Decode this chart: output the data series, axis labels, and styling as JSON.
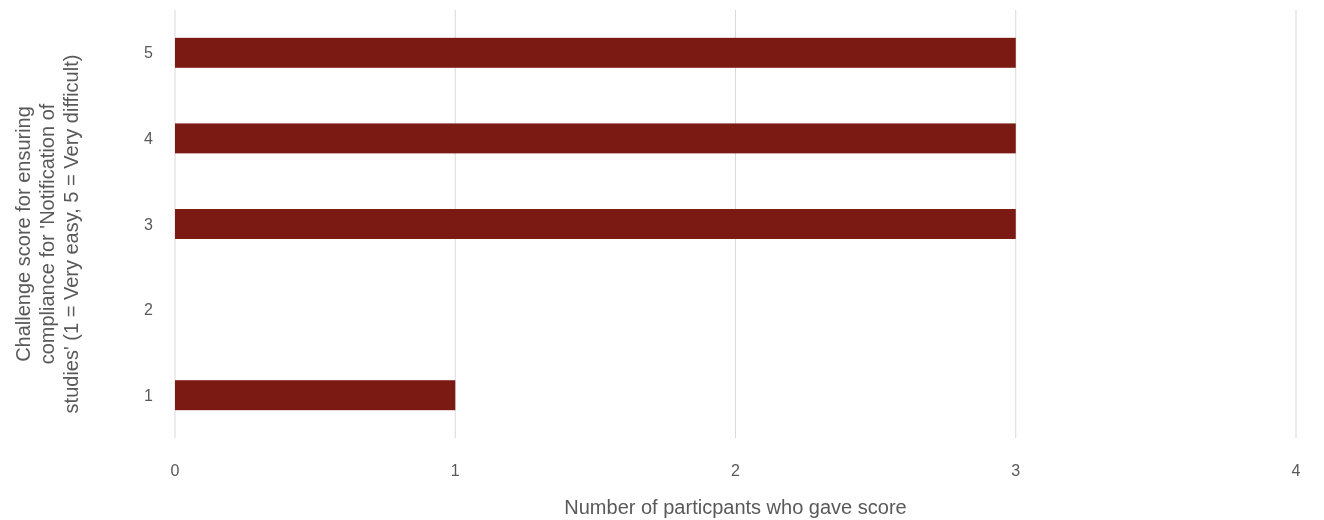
{
  "chart_data": {
    "type": "bar",
    "orientation": "horizontal",
    "categories": [
      "5",
      "4",
      "3",
      "2",
      "1"
    ],
    "values": [
      3,
      3,
      3,
      0,
      1
    ],
    "color": "#7b1a13",
    "xlim": [
      0,
      4
    ],
    "xticks": [
      0,
      1,
      2,
      3,
      4
    ],
    "grid": "x",
    "xlabel": "Number of particpants who gave score",
    "ylabel": "Challenge score for ensuring\ncompliance  for 'Notification of\nstudies' (1 = Very easy, 5 = Very difficult)"
  }
}
